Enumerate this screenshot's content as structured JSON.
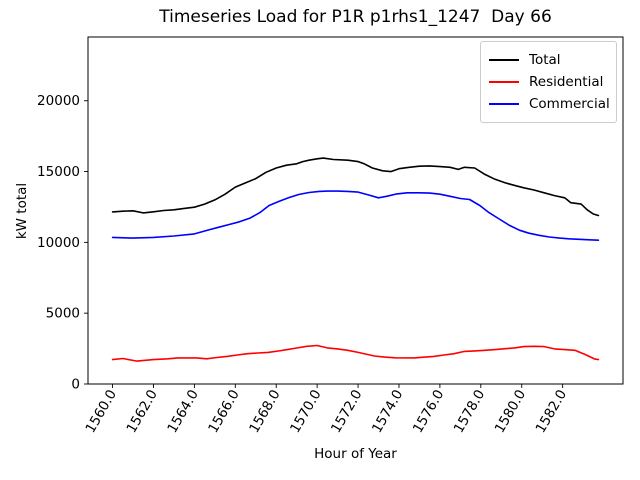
{
  "chart_data": {
    "type": "line",
    "title": "Timeseries Load for P1R p1rhs1_1247  Day 66",
    "xlabel": "Hour of Year",
    "ylabel": "kW total",
    "xlim": [
      1558.8,
      1584.95
    ],
    "ylim": [
      0,
      24500
    ],
    "grid": false,
    "legend_position": "upper right",
    "x_tick_labels": [
      "1560.0",
      "1562.0",
      "1564.0",
      "1566.0",
      "1568.0",
      "1570.0",
      "1572.0",
      "1574.0",
      "1576.0",
      "1578.0",
      "1580.0",
      "1582.0"
    ],
    "x_tick_values": [
      1560,
      1562,
      1564,
      1566,
      1568,
      1570,
      1572,
      1574,
      1576,
      1578,
      1580,
      1582
    ],
    "y_tick_labels": [
      "0",
      "5000",
      "10000",
      "15000",
      "20000"
    ],
    "y_tick_values": [
      0,
      5000,
      10000,
      15000,
      20000
    ],
    "series": [
      {
        "name": "Total",
        "color": "#000000",
        "x": [
          1560,
          1560.5,
          1561,
          1561.5,
          1562,
          1562.5,
          1563,
          1563.5,
          1564,
          1564.5,
          1565,
          1565.5,
          1566,
          1566.5,
          1567,
          1567.5,
          1568,
          1568.5,
          1569,
          1569.3,
          1569.6,
          1570,
          1570.3,
          1570.8,
          1571.5,
          1572,
          1572.3,
          1572.7,
          1573.2,
          1573.6,
          1574,
          1574.5,
          1575,
          1575.5,
          1576,
          1576.5,
          1576.9,
          1577.2,
          1577.7,
          1578.2,
          1578.7,
          1579.2,
          1579.7,
          1580.1,
          1580.6,
          1581.1,
          1581.6,
          1582.1,
          1582.4,
          1582.9,
          1583.2,
          1583.5,
          1583.75
        ],
        "y": [
          12150,
          12200,
          12230,
          12080,
          12160,
          12250,
          12300,
          12400,
          12480,
          12700,
          13000,
          13400,
          13900,
          14200,
          14500,
          14950,
          15250,
          15450,
          15550,
          15700,
          15800,
          15900,
          15950,
          15850,
          15800,
          15700,
          15550,
          15250,
          15050,
          15000,
          15200,
          15300,
          15380,
          15400,
          15350,
          15300,
          15150,
          15300,
          15250,
          14800,
          14450,
          14200,
          14000,
          13850,
          13700,
          13500,
          13300,
          13150,
          12800,
          12700,
          12300,
          12000,
          11900
        ]
      },
      {
        "name": "Residential",
        "color": "#ff0000",
        "x": [
          1560,
          1560.5,
          1561.2,
          1562,
          1562.7,
          1563.2,
          1564.1,
          1564.6,
          1565.1,
          1565.6,
          1566.1,
          1566.6,
          1567.1,
          1567.6,
          1568.1,
          1568.55,
          1569,
          1569.5,
          1570,
          1570.5,
          1571,
          1571.5,
          1572,
          1572.8,
          1573.3,
          1573.8,
          1574.75,
          1575.2,
          1575.7,
          1576.2,
          1576.7,
          1577.2,
          1577.7,
          1578.2,
          1578.7,
          1579.2,
          1579.65,
          1580.1,
          1580.6,
          1581.1,
          1581.6,
          1582.1,
          1582.6,
          1583.1,
          1583.55,
          1583.75
        ],
        "y": [
          1720,
          1800,
          1620,
          1720,
          1780,
          1840,
          1840,
          1780,
          1870,
          1950,
          2050,
          2140,
          2190,
          2230,
          2330,
          2430,
          2540,
          2660,
          2720,
          2550,
          2480,
          2380,
          2230,
          1980,
          1900,
          1850,
          1840,
          1890,
          1950,
          2050,
          2140,
          2300,
          2340,
          2380,
          2430,
          2490,
          2550,
          2640,
          2660,
          2640,
          2480,
          2430,
          2380,
          2080,
          1770,
          1720
        ]
      },
      {
        "name": "Commercial",
        "color": "#0000ff",
        "x": [
          1560,
          1561,
          1562,
          1563,
          1564,
          1564.75,
          1565.2,
          1565.7,
          1566.2,
          1566.7,
          1567.2,
          1567.65,
          1568.15,
          1568.6,
          1569.1,
          1569.6,
          1570.1,
          1570.5,
          1571,
          1571.5,
          1572,
          1572.5,
          1573,
          1573.4,
          1573.9,
          1574.4,
          1575,
          1575.5,
          1576,
          1576.5,
          1577,
          1577.45,
          1577.95,
          1578.4,
          1578.9,
          1579.4,
          1579.9,
          1580.35,
          1580.85,
          1581.35,
          1581.85,
          1582.3,
          1582.8,
          1583.3,
          1583.75
        ],
        "y": [
          10350,
          10300,
          10350,
          10450,
          10600,
          10900,
          11070,
          11260,
          11450,
          11700,
          12100,
          12600,
          12900,
          13150,
          13380,
          13520,
          13600,
          13620,
          13620,
          13600,
          13550,
          13350,
          13150,
          13250,
          13420,
          13500,
          13500,
          13480,
          13400,
          13250,
          13100,
          13030,
          12600,
          12100,
          11650,
          11200,
          10850,
          10650,
          10500,
          10380,
          10300,
          10250,
          10220,
          10180,
          10150
        ]
      }
    ]
  }
}
